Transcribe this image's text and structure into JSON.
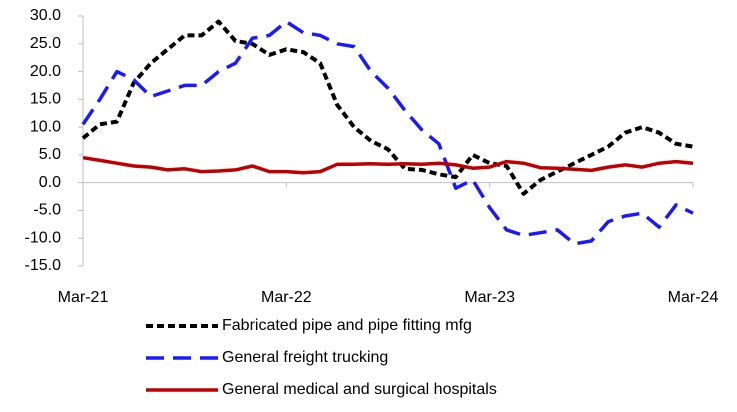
{
  "chart_data": {
    "type": "line",
    "categories": [
      "Mar-21",
      null,
      null,
      null,
      null,
      null,
      null,
      null,
      null,
      null,
      null,
      null,
      "Mar-22",
      null,
      null,
      null,
      null,
      null,
      null,
      null,
      null,
      null,
      null,
      null,
      "Mar-23",
      null,
      null,
      null,
      null,
      null,
      null,
      null,
      null,
      null,
      null,
      null,
      "Mar-24"
    ],
    "series": [
      {
        "name": "Fabricated pipe and pipe fitting mfg",
        "color": "#000000",
        "line_style": "dashed",
        "values": [
          8,
          10.5,
          11,
          18,
          21.5,
          24,
          26.5,
          26.5,
          29,
          25.5,
          25,
          23,
          24,
          23.5,
          21.5,
          14,
          10,
          7.5,
          6,
          2.5,
          2.3,
          1.5,
          1,
          5,
          3.5,
          3,
          -2,
          0.5,
          2,
          3.5,
          5,
          6.5,
          9,
          10,
          9,
          7,
          6.5
        ]
      },
      {
        "name": "General freight trucking",
        "color": "#1a1aff",
        "line_style": "long-dash",
        "values": [
          10.5,
          15,
          20,
          18.5,
          15.5,
          16.5,
          17.5,
          17.5,
          20,
          21.5,
          26,
          26.5,
          29,
          27,
          26.5,
          25,
          24.5,
          20,
          17,
          13,
          9.5,
          7,
          -1,
          0.5,
          -4.5,
          -8.5,
          -9.5,
          -9,
          -8.5,
          -11,
          -10.5,
          -7,
          -6,
          -5.5,
          -8,
          -4,
          -5.5
        ]
      },
      {
        "name": "General medical and surgical hospitals",
        "color": "#c00000",
        "line_style": "solid",
        "values": [
          4.5,
          4,
          3.5,
          3,
          2.8,
          2.3,
          2.5,
          2,
          2.1,
          2.3,
          3,
          2,
          2,
          1.8,
          2,
          3.3,
          3.3,
          3.4,
          3.3,
          3.4,
          3.3,
          3.5,
          3.2,
          2.6,
          2.8,
          3.8,
          3.5,
          2.7,
          2.6,
          2.4,
          2.2,
          2.8,
          3.2,
          2.8,
          3.5,
          3.8,
          3.5
        ]
      }
    ],
    "ylim": [
      -15,
      30
    ],
    "yticks": [
      {
        "value": -15,
        "label": "-15.0"
      },
      {
        "value": -10,
        "label": "-10.0"
      },
      {
        "value": -5,
        "label": "-5.0"
      },
      {
        "value": 0,
        "label": "0.0"
      },
      {
        "value": 5,
        "label": "5.0"
      },
      {
        "value": 10,
        "label": "10.0"
      },
      {
        "value": 15,
        "label": "15.0"
      },
      {
        "value": 20,
        "label": "20.0"
      },
      {
        "value": 25,
        "label": "25.0"
      },
      {
        "value": 30,
        "label": "30.0"
      }
    ],
    "grid": false,
    "legend": "bottom"
  }
}
